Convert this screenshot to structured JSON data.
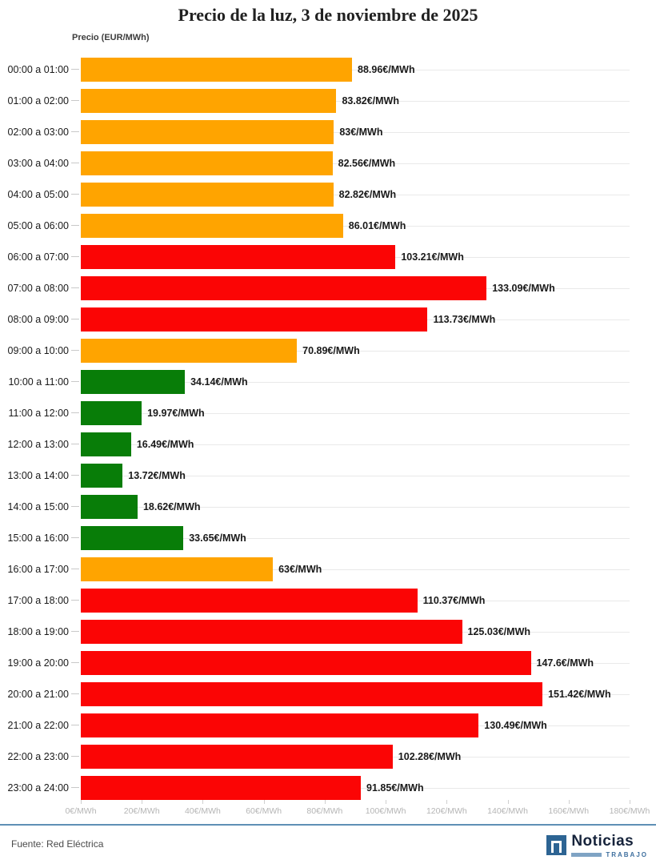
{
  "title": "Precio de la luz, 3 de noviembre de 2025",
  "axis_label": "Precio (EUR/MWh)",
  "footer": {
    "source": "Fuente: Red Eléctrica",
    "logo": {
      "name_text": "Noticias",
      "sub_text": "TRABAJO"
    }
  },
  "colors": {
    "orange": "#FFA400",
    "red": "#FB0505",
    "green": "#087D08",
    "divider_blue": "#5F90B5",
    "grid": "#e9e9e9",
    "logo_navy": "#16233B",
    "logo_square_blue": "#2D6493",
    "logo_light_blue": "#7FA3C4",
    "logo_sub_blue": "#3E6F9E"
  },
  "chart_data": {
    "type": "bar",
    "orientation": "horizontal",
    "title": "Precio de la luz, 3 de noviembre de 2025",
    "xlabel": "Precio (EUR/MWh)",
    "ylabel": "",
    "xlim": [
      0,
      180
    ],
    "grid": "row gridlines on",
    "legend": "none",
    "xticks": [
      0,
      20,
      40,
      60,
      80,
      100,
      120,
      140,
      160,
      180
    ],
    "xtick_labels": [
      "0€/MWh",
      "20€/MWh",
      "40€/MWh",
      "60€/MWh",
      "80€/MWh",
      "100€/MWh",
      "120€/MWh",
      "140€/MWh",
      "160€/MWh",
      "180€/MWh"
    ],
    "categories": [
      "00:00 a 01:00",
      "01:00 a 02:00",
      "02:00 a 03:00",
      "03:00 a 04:00",
      "04:00 a 05:00",
      "05:00 a 06:00",
      "06:00 a 07:00",
      "07:00 a 08:00",
      "08:00 a 09:00",
      "09:00 a 10:00",
      "10:00 a 11:00",
      "11:00 a 12:00",
      "12:00 a 13:00",
      "13:00 a 14:00",
      "14:00 a 15:00",
      "15:00 a 16:00",
      "16:00 a 17:00",
      "17:00 a 18:00",
      "18:00 a 19:00",
      "19:00 a 20:00",
      "20:00 a 21:00",
      "21:00 a 22:00",
      "22:00 a 23:00",
      "23:00 a 24:00"
    ],
    "values": [
      88.96,
      83.82,
      83,
      82.56,
      82.82,
      86.01,
      103.21,
      133.09,
      113.73,
      70.89,
      34.14,
      19.97,
      16.49,
      13.72,
      18.62,
      33.65,
      63,
      110.37,
      125.03,
      147.6,
      151.42,
      130.49,
      102.28,
      91.85
    ],
    "bar_labels": [
      "88.96€/MWh",
      "83.82€/MWh",
      "83€/MWh",
      "82.56€/MWh",
      "82.82€/MWh",
      "86.01€/MWh",
      "103.21€/MWh",
      "133.09€/MWh",
      "113.73€/MWh",
      "70.89€/MWh",
      "34.14€/MWh",
      "19.97€/MWh",
      "16.49€/MWh",
      "13.72€/MWh",
      "18.62€/MWh",
      "33.65€/MWh",
      "63€/MWh",
      "110.37€/MWh",
      "125.03€/MWh",
      "147.6€/MWh",
      "151.42€/MWh",
      "130.49€/MWh",
      "102.28€/MWh",
      "91.85€/MWh"
    ],
    "bar_colors": [
      "orange",
      "orange",
      "orange",
      "orange",
      "orange",
      "orange",
      "red",
      "red",
      "red",
      "orange",
      "green",
      "green",
      "green",
      "green",
      "green",
      "green",
      "orange",
      "red",
      "red",
      "red",
      "red",
      "red",
      "red",
      "red"
    ]
  }
}
